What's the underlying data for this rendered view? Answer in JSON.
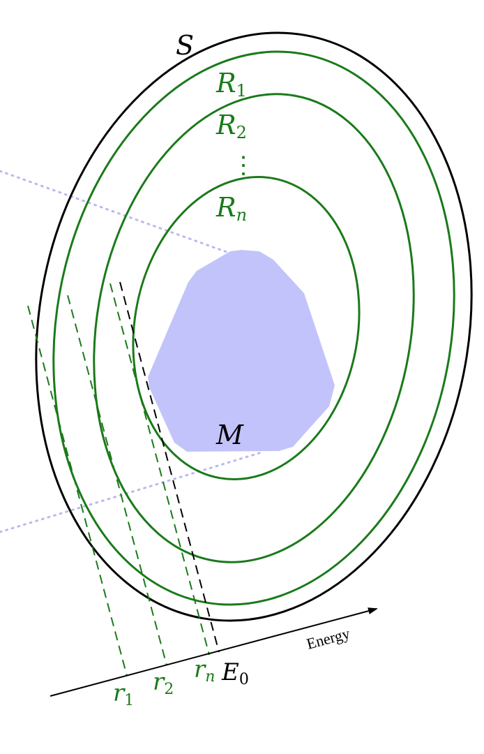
{
  "colors": {
    "outer": "#000000",
    "region": "#1a7a1a",
    "manifold_fill": "#c3c3fb",
    "projection_line": "#b9b9f0",
    "text_green": "#1a7a1a",
    "text_black": "#000000"
  },
  "labels": {
    "S": "S",
    "R1_letter": "R",
    "R1_sub": "1",
    "R2_letter": "R",
    "R2_sub": "2",
    "Rn_letter": "R",
    "Rn_sub": "n",
    "vdots": "⋮",
    "M": "M",
    "axis": "Energy",
    "r1_letter": "r",
    "r1_sub": "1",
    "r2_letter": "r",
    "r2_sub": "2",
    "rn_letter": "r",
    "rn_sub": "n",
    "E0_letter": "E",
    "E0_sub": "0"
  }
}
